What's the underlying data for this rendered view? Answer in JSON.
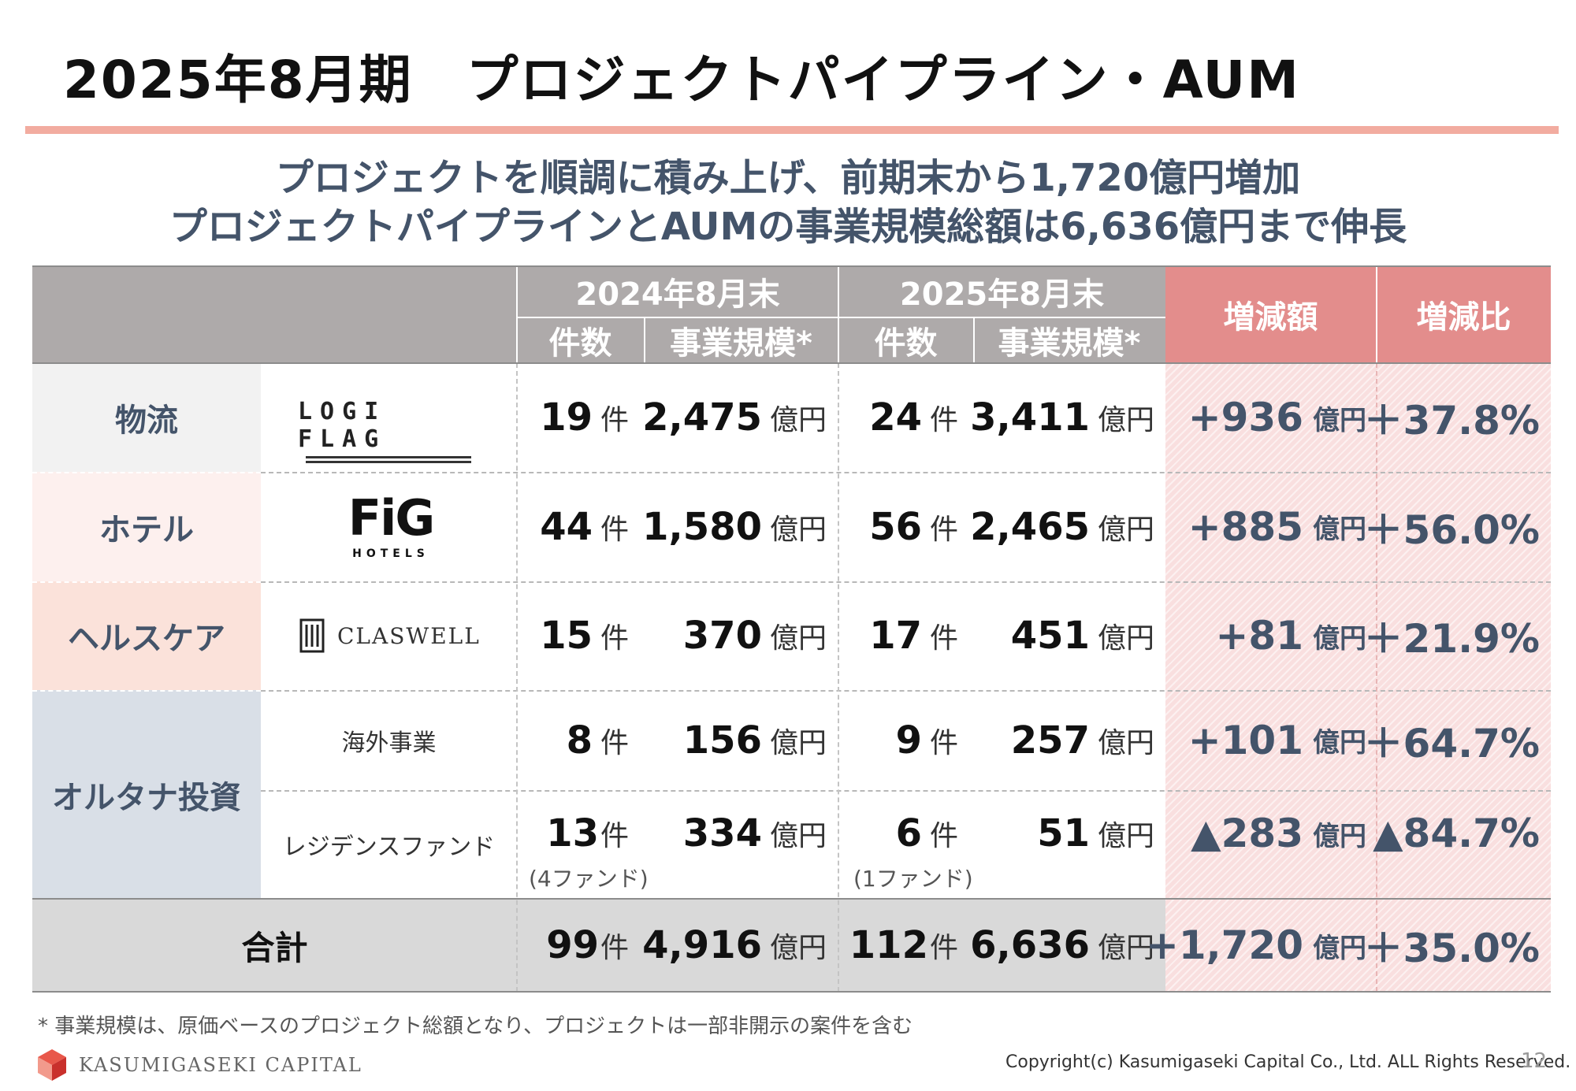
{
  "title": "2025年8月期　プロジェクトパイプライン・AUM",
  "headline": {
    "line1": "プロジェクトを順調に積み上げ、前期末から1,720億円増加",
    "line2": "プロジェクトパイプラインとAUMの事業規模総額は6,636億円まで伸長"
  },
  "table": {
    "header": {
      "period_2024": "2024年8月末",
      "period_2025": "2025年8月末",
      "count_label": "件数",
      "scale_label": "事業規模*",
      "change_amount": "増減額",
      "change_ratio": "増減比"
    },
    "units": {
      "count": "件",
      "oku": "億円"
    },
    "rows": [
      {
        "category": "物流",
        "brand": "LOGI FLAG",
        "count_2024": "19",
        "scale_2024": "2,475",
        "count_2025": "24",
        "scale_2025": "3,411",
        "delta": "+936",
        "ratio": "＋37.8%"
      },
      {
        "category": "ホテル",
        "brand": "FiG",
        "brand_sub": "HOTELS",
        "count_2024": "44",
        "scale_2024": "1,580",
        "count_2025": "56",
        "scale_2025": "2,465",
        "delta": "+885",
        "ratio": "＋56.0%"
      },
      {
        "category": "ヘルスケア",
        "brand": "CLASWELL",
        "count_2024": "15",
        "scale_2024": "370",
        "count_2025": "17",
        "scale_2025": "451",
        "delta": "+81",
        "ratio": "＋21.9%"
      },
      {
        "category": "オルタナ投資",
        "sub": "海外事業",
        "count_2024": "8",
        "scale_2024": "156",
        "count_2025": "9",
        "scale_2025": "257",
        "delta": "+101",
        "ratio": "＋64.7%"
      },
      {
        "sub": "レジデンスファンド",
        "count_2024": "13",
        "count_2024_note": "(4ファンド)",
        "scale_2024": "334",
        "count_2025": "6",
        "count_2025_note": "(1ファンド)",
        "scale_2025": "51",
        "delta": "▲283",
        "ratio": "▲84.7%"
      }
    ],
    "total": {
      "label": "合計",
      "count_2024": "99",
      "scale_2024": "4,916",
      "count_2025": "112",
      "scale_2025": "6,636",
      "delta": "+1,720",
      "ratio": "＋35.0%"
    }
  },
  "footnote": "* 事業規模は、原価ベースのプロジェクト総額となり、プロジェクトは一部非開示の案件を含む",
  "brand": "KASUMIGASEKI CAPITAL",
  "copyright": "Copyright(c) Kasumigaseki Capital Co., Ltd. ALL Rights Reserved.",
  "page_number": "12",
  "colors": {
    "accent_rule": "#f2aca0",
    "header_gray": "#aeaaaa",
    "header_pink": "#e38d8c",
    "headline_navy": "#44546a",
    "cat_logistics_bg": "#f2f2f2",
    "cat_hotel_bg": "#fdf0ee",
    "cat_healthcare_bg": "#fbe2da",
    "cat_alt_bg": "#d9dfe7",
    "total_bg": "#d9d9d9"
  }
}
